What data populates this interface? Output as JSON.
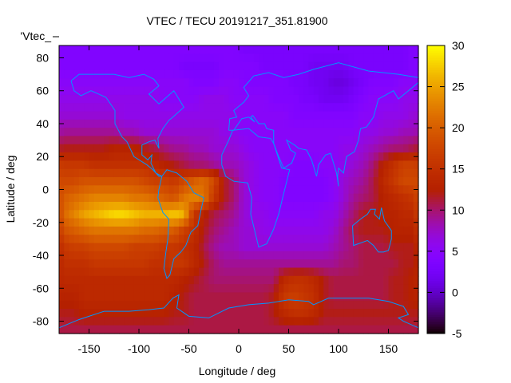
{
  "chart_data": {
    "type": "heatmap",
    "title": "VTEC / TECU 20191217_351.81900",
    "xlabel": "Longitude / deg",
    "ylabel": "Latitude / deg",
    "legend_key": "'Vtec_",
    "xlim": [
      -180,
      180
    ],
    "ylim": [
      -87.5,
      87.5
    ],
    "xticks": [
      -150,
      -100,
      -50,
      0,
      50,
      100,
      150
    ],
    "yticks": [
      -80,
      -60,
      -40,
      -20,
      0,
      20,
      40,
      60,
      80
    ],
    "colorbar": {
      "range": [
        -5,
        30
      ],
      "ticks": [
        -5,
        0,
        5,
        10,
        15,
        20,
        25,
        30
      ],
      "palette": "black-purple-red-orange-yellow"
    },
    "grid_lon_centers_start": -175,
    "grid_lon_step": 10,
    "grid_lat_centers": [
      85,
      75,
      65,
      55,
      45,
      35,
      25,
      15,
      5,
      -5,
      -15,
      -25,
      -35,
      -45,
      -55,
      -65,
      -75,
      -85
    ],
    "values": [
      [
        4,
        4,
        4,
        4,
        4,
        4,
        4,
        4,
        4,
        4,
        4,
        4,
        4,
        4,
        4,
        4,
        4,
        4,
        3,
        3,
        3,
        3,
        3,
        3,
        3,
        3,
        3,
        3,
        3,
        3,
        3,
        3,
        3,
        3,
        3,
        4
      ],
      [
        4,
        4,
        4,
        4,
        4,
        4,
        4,
        4,
        4,
        4,
        4,
        4,
        3,
        3,
        3,
        3,
        4,
        4,
        4,
        4,
        3,
        3,
        3,
        3,
        3,
        2,
        2,
        2,
        2,
        3,
        3,
        3,
        3,
        3,
        3,
        4
      ],
      [
        5,
        5,
        5,
        5,
        5,
        5,
        5,
        5,
        5,
        5,
        5,
        5,
        5,
        4,
        4,
        4,
        5,
        5,
        4,
        4,
        4,
        4,
        4,
        3,
        3,
        2,
        2,
        1,
        1,
        2,
        3,
        4,
        4,
        4,
        5,
        5
      ],
      [
        6,
        6,
        6,
        6,
        6,
        6,
        6,
        6,
        6,
        6,
        5,
        5,
        5,
        5,
        6,
        6,
        6,
        5,
        5,
        5,
        5,
        4,
        4,
        4,
        3,
        3,
        2,
        2,
        2,
        3,
        4,
        5,
        5,
        5,
        6,
        6
      ],
      [
        7,
        7,
        7,
        7,
        7,
        7,
        6,
        6,
        6,
        6,
        6,
        6,
        6,
        6,
        6,
        6,
        6,
        6,
        5,
        5,
        5,
        5,
        5,
        4,
        4,
        4,
        4,
        4,
        4,
        4,
        5,
        5,
        6,
        6,
        6,
        7
      ],
      [
        9,
        9,
        9,
        9,
        9,
        9,
        8,
        8,
        7,
        7,
        7,
        7,
        7,
        7,
        7,
        7,
        6,
        6,
        5,
        5,
        5,
        5,
        5,
        5,
        5,
        5,
        5,
        5,
        5,
        5,
        6,
        6,
        7,
        7,
        8,
        8
      ],
      [
        12,
        12,
        12,
        12,
        12,
        13,
        13,
        13,
        12,
        11,
        10,
        9,
        9,
        8,
        8,
        7,
        7,
        7,
        6,
        5,
        5,
        5,
        5,
        5,
        5,
        5,
        5,
        5,
        6,
        6,
        7,
        8,
        9,
        10,
        10,
        11
      ],
      [
        16,
        16,
        16,
        15,
        15,
        15,
        15,
        15,
        15,
        14,
        13,
        12,
        11,
        10,
        10,
        9,
        8,
        8,
        7,
        6,
        5,
        5,
        5,
        4,
        4,
        4,
        5,
        5,
        6,
        7,
        8,
        10,
        13,
        15,
        17,
        17
      ],
      [
        18,
        18,
        19,
        19,
        19,
        19,
        19,
        19,
        18,
        17,
        17,
        16,
        18,
        20,
        21,
        18,
        12,
        10,
        7,
        6,
        5,
        5,
        4,
        4,
        4,
        4,
        4,
        5,
        7,
        8,
        9,
        11,
        14,
        16,
        18,
        18
      ],
      [
        20,
        21,
        22,
        23,
        23,
        23,
        23,
        22,
        22,
        21,
        20,
        19,
        22,
        23,
        22,
        16,
        12,
        10,
        7,
        6,
        5,
        5,
        4,
        4,
        4,
        4,
        4,
        5,
        7,
        9,
        10,
        11,
        13,
        14,
        15,
        16
      ],
      [
        21,
        23,
        25,
        26,
        27,
        28,
        28,
        27,
        26,
        26,
        26,
        27,
        26,
        16,
        13,
        11,
        10,
        9,
        7,
        6,
        6,
        5,
        5,
        5,
        5,
        5,
        6,
        6,
        8,
        10,
        12,
        12,
        13,
        13,
        14,
        14
      ],
      [
        19,
        20,
        21,
        22,
        22,
        22,
        22,
        22,
        21,
        21,
        20,
        20,
        17,
        15,
        12,
        10,
        9,
        8,
        7,
        7,
        6,
        6,
        6,
        6,
        6,
        6,
        6,
        7,
        9,
        11,
        12,
        12,
        12,
        13,
        13,
        13
      ],
      [
        16,
        17,
        17,
        18,
        18,
        18,
        18,
        17,
        17,
        17,
        16,
        16,
        15,
        14,
        11,
        9,
        8,
        8,
        7,
        7,
        7,
        7,
        7,
        7,
        7,
        7,
        7,
        8,
        9,
        10,
        11,
        11,
        11,
        12,
        12,
        12
      ],
      [
        15,
        15,
        15,
        16,
        16,
        16,
        16,
        16,
        16,
        15,
        15,
        16,
        16,
        14,
        12,
        10,
        9,
        9,
        9,
        9,
        9,
        9,
        9,
        9,
        9,
        9,
        9,
        9,
        10,
        10,
        11,
        11,
        11,
        11,
        12,
        12
      ],
      [
        14,
        14,
        14,
        14,
        14,
        14,
        14,
        14,
        14,
        14,
        14,
        14,
        13,
        12,
        11,
        10,
        10,
        10,
        10,
        10,
        10,
        10,
        14,
        15,
        15,
        14,
        12,
        11,
        11,
        11,
        11,
        11,
        11,
        12,
        12,
        13
      ],
      [
        13,
        13,
        14,
        14,
        14,
        14,
        14,
        14,
        14,
        14,
        14,
        13,
        12,
        11,
        11,
        11,
        11,
        11,
        11,
        11,
        11,
        12,
        16,
        17,
        16,
        15,
        12,
        11,
        11,
        11,
        11,
        11,
        11,
        12,
        12,
        13
      ],
      [
        12,
        12,
        13,
        13,
        13,
        13,
        13,
        13,
        13,
        13,
        13,
        12,
        12,
        11,
        11,
        11,
        11,
        11,
        11,
        11,
        11,
        12,
        14,
        15,
        15,
        14,
        12,
        12,
        12,
        12,
        12,
        12,
        12,
        12,
        12,
        12
      ],
      [
        11,
        11,
        11,
        11,
        11,
        11,
        11,
        11,
        11,
        11,
        11,
        11,
        11,
        11,
        11,
        11,
        11,
        11,
        11,
        11,
        11,
        11,
        11,
        11,
        11,
        11,
        11,
        11,
        11,
        11,
        11,
        11,
        11,
        11,
        11,
        11
      ]
    ],
    "coastline_color": "#0096ff"
  }
}
